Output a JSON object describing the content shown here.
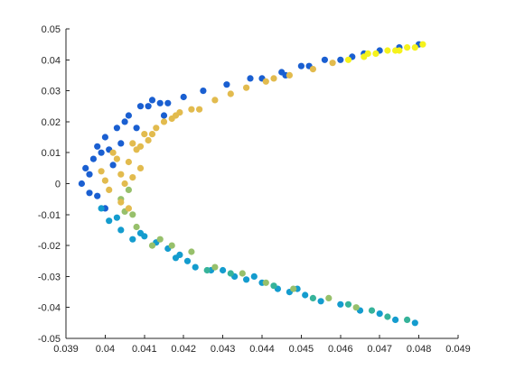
{
  "chart_data": {
    "type": "scatter",
    "title": "",
    "xlabel": "",
    "ylabel": "",
    "xlim": [
      0.039,
      0.049
    ],
    "ylim": [
      -0.05,
      0.05
    ],
    "grid": false,
    "x_ticks": [
      "0.039",
      "0.04",
      "0.041",
      "0.042",
      "0.043",
      "0.044",
      "0.045",
      "0.046",
      "0.047",
      "0.048",
      "0.049"
    ],
    "y_ticks": [
      "0.05",
      "0.04",
      "0.03",
      "0.02",
      "0.01",
      "0",
      "-0.01",
      "-0.02",
      "-0.03",
      "-0.04",
      "-0.05"
    ],
    "point_color_scale": [
      "#1a5fd1",
      "#149cce",
      "#36b39a",
      "#97c06b",
      "#e2bb4e",
      "#f5f21c"
    ],
    "series": [
      {
        "color": "#1a5fd1",
        "points": [
          [
            0.0395,
            0.005
          ],
          [
            0.0394,
            0.0
          ],
          [
            0.0396,
            -0.003
          ],
          [
            0.0397,
            0.008
          ],
          [
            0.0398,
            0.012
          ],
          [
            0.0399,
            0.01
          ],
          [
            0.04,
            0.015
          ],
          [
            0.0401,
            0.011
          ],
          [
            0.0403,
            0.018
          ],
          [
            0.0405,
            0.02
          ],
          [
            0.0406,
            0.022
          ],
          [
            0.0409,
            0.025
          ],
          [
            0.0411,
            0.025
          ],
          [
            0.0412,
            0.027
          ],
          [
            0.0414,
            0.026
          ],
          [
            0.0416,
            0.026
          ],
          [
            0.042,
            0.028
          ],
          [
            0.0425,
            0.03
          ],
          [
            0.0431,
            0.032
          ],
          [
            0.0437,
            0.034
          ],
          [
            0.044,
            0.034
          ],
          [
            0.0445,
            0.036
          ],
          [
            0.045,
            0.038
          ],
          [
            0.0456,
            0.04
          ],
          [
            0.046,
            0.04
          ],
          [
            0.0466,
            0.042
          ],
          [
            0.047,
            0.043
          ],
          [
            0.0475,
            0.044
          ],
          [
            0.048,
            0.045
          ],
          [
            0.0402,
            0.006
          ],
          [
            0.0404,
            0.013
          ],
          [
            0.0398,
            -0.004
          ],
          [
            0.04,
            -0.008
          ],
          [
            0.0396,
            0.003
          ],
          [
            0.0408,
            0.018
          ],
          [
            0.0415,
            0.022
          ],
          [
            0.0446,
            0.035
          ],
          [
            0.0452,
            0.038
          ],
          [
            0.0463,
            0.041
          ]
        ]
      },
      {
        "color": "#149cce",
        "points": [
          [
            0.0399,
            -0.008
          ],
          [
            0.0401,
            -0.012
          ],
          [
            0.0404,
            -0.015
          ],
          [
            0.0407,
            -0.018
          ],
          [
            0.041,
            -0.017
          ],
          [
            0.0413,
            -0.019
          ],
          [
            0.0416,
            -0.021
          ],
          [
            0.0418,
            -0.024
          ],
          [
            0.0421,
            -0.025
          ],
          [
            0.0423,
            -0.027
          ],
          [
            0.0427,
            -0.028
          ],
          [
            0.043,
            -0.028
          ],
          [
            0.0433,
            -0.03
          ],
          [
            0.0436,
            -0.031
          ],
          [
            0.044,
            -0.032
          ],
          [
            0.0444,
            -0.034
          ],
          [
            0.0447,
            -0.035
          ],
          [
            0.0451,
            -0.036
          ],
          [
            0.0455,
            -0.038
          ],
          [
            0.046,
            -0.039
          ],
          [
            0.0465,
            -0.041
          ],
          [
            0.047,
            -0.042
          ],
          [
            0.0474,
            -0.044
          ],
          [
            0.0479,
            -0.045
          ],
          [
            0.0403,
            -0.011
          ],
          [
            0.0409,
            -0.016
          ],
          [
            0.0419,
            -0.023
          ],
          [
            0.0438,
            -0.03
          ],
          [
            0.0449,
            -0.034
          ]
        ]
      },
      {
        "color": "#36b39a",
        "points": [
          [
            0.0426,
            -0.028
          ],
          [
            0.0432,
            -0.029
          ],
          [
            0.0443,
            -0.033
          ],
          [
            0.0453,
            -0.037
          ],
          [
            0.0462,
            -0.039
          ],
          [
            0.0468,
            -0.041
          ],
          [
            0.0472,
            -0.043
          ],
          [
            0.0477,
            -0.044
          ]
        ]
      },
      {
        "color": "#97c06b",
        "points": [
          [
            0.0404,
            -0.005
          ],
          [
            0.0405,
            -0.009
          ],
          [
            0.0408,
            -0.014
          ],
          [
            0.0412,
            -0.02
          ],
          [
            0.0417,
            -0.02
          ],
          [
            0.0422,
            -0.022
          ],
          [
            0.0428,
            -0.027
          ],
          [
            0.0435,
            -0.029
          ],
          [
            0.0441,
            -0.032
          ],
          [
            0.0448,
            -0.034
          ],
          [
            0.0457,
            -0.037
          ],
          [
            0.0464,
            -0.04
          ],
          [
            0.0406,
            -0.002
          ],
          [
            0.0407,
            -0.01
          ],
          [
            0.0414,
            -0.018
          ]
        ]
      },
      {
        "color": "#e2bb4e",
        "points": [
          [
            0.0399,
            0.004
          ],
          [
            0.04,
            0.001
          ],
          [
            0.0401,
            -0.002
          ],
          [
            0.0402,
            0.01
          ],
          [
            0.0403,
            0.008
          ],
          [
            0.0404,
            0.003
          ],
          [
            0.0405,
            0.0
          ],
          [
            0.0406,
            0.007
          ],
          [
            0.0407,
            0.013
          ],
          [
            0.0408,
            0.011
          ],
          [
            0.0409,
            0.005
          ],
          [
            0.041,
            0.016
          ],
          [
            0.0411,
            0.014
          ],
          [
            0.0413,
            0.018
          ],
          [
            0.0415,
            0.02
          ],
          [
            0.0417,
            0.021
          ],
          [
            0.0419,
            0.023
          ],
          [
            0.0422,
            0.024
          ],
          [
            0.0424,
            0.024
          ],
          [
            0.0428,
            0.027
          ],
          [
            0.0432,
            0.029
          ],
          [
            0.0436,
            0.031
          ],
          [
            0.0441,
            0.033
          ],
          [
            0.0447,
            0.035
          ],
          [
            0.0453,
            0.037
          ],
          [
            0.0458,
            0.039
          ],
          [
            0.0404,
            -0.006
          ],
          [
            0.0406,
            -0.008
          ],
          [
            0.0407,
            0.002
          ],
          [
            0.0409,
            0.012
          ],
          [
            0.0412,
            0.016
          ],
          [
            0.0418,
            0.022
          ],
          [
            0.0443,
            0.034
          ]
        ]
      },
      {
        "color": "#f5f21c",
        "points": [
          [
            0.0462,
            0.04
          ],
          [
            0.0466,
            0.041
          ],
          [
            0.0469,
            0.042
          ],
          [
            0.0472,
            0.043
          ],
          [
            0.0475,
            0.043
          ],
          [
            0.0477,
            0.044
          ],
          [
            0.0479,
            0.044
          ],
          [
            0.0481,
            0.045
          ],
          [
            0.0467,
            0.042
          ],
          [
            0.0474,
            0.043
          ]
        ]
      }
    ]
  }
}
